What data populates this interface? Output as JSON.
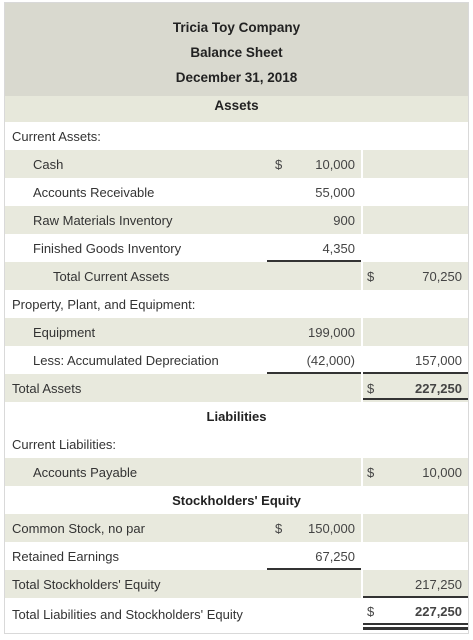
{
  "header": {
    "company": "Tricia Toy Company",
    "statement": "Balance Sheet",
    "date": "December 31, 2018"
  },
  "sections": {
    "assets": "Assets",
    "liabilities": "Liabilities",
    "equity": "Stockholders' Equity"
  },
  "rows": {
    "current_assets": {
      "label": "Current Assets:"
    },
    "cash": {
      "label": "Cash",
      "dollar": "$",
      "amount": "10,000"
    },
    "ar": {
      "label": "Accounts Receivable",
      "amount": "55,000"
    },
    "raw": {
      "label": "Raw Materials Inventory",
      "amount": "900"
    },
    "fg": {
      "label": "Finished Goods Inventory",
      "amount": "4,350"
    },
    "tca": {
      "label": "Total Current Assets",
      "dollar": "$",
      "total": "70,250"
    },
    "ppe": {
      "label": "Property, Plant, and Equipment:"
    },
    "equip": {
      "label": "Equipment",
      "amount": "199,000"
    },
    "accum": {
      "label": "Less: Accumulated Depreciation",
      "amount": "(42,000)",
      "total": "157,000"
    },
    "ta": {
      "label": "Total Assets",
      "dollar": "$",
      "total": "227,250"
    },
    "cl": {
      "label": "Current Liabilities:"
    },
    "ap": {
      "label": "Accounts Payable",
      "dollar": "$",
      "total": "10,000"
    },
    "cs": {
      "label": "Common Stock, no par",
      "dollar": "$",
      "amount": "150,000"
    },
    "re": {
      "label": "Retained Earnings",
      "amount": "67,250"
    },
    "tse": {
      "label": "Total Stockholders' Equity",
      "total": "217,250"
    },
    "tle": {
      "label": "Total Liabilities and Stockholders' Equity",
      "dollar": "$",
      "total": "227,250"
    }
  }
}
